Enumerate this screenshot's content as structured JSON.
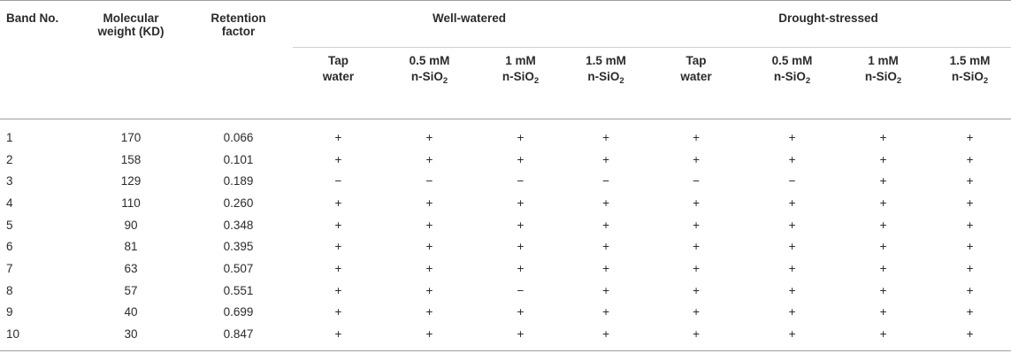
{
  "headers": {
    "band_no": "Band No.",
    "mol_weight": [
      "Molecular",
      "weight (KD)"
    ],
    "retention": [
      "Retention",
      "factor"
    ],
    "group_ww": "Well-watered",
    "group_ds": "Drought-stressed",
    "treatments": [
      {
        "l1": "Tap",
        "l2": "water",
        "sub": ""
      },
      {
        "l1": "0.5 mM",
        "l2": "n-SiO",
        "sub": "2"
      },
      {
        "l1": "1 mM",
        "l2": "n-SiO",
        "sub": "2"
      },
      {
        "l1": "1.5 mM",
        "l2": "n-SiO",
        "sub": "2"
      },
      {
        "l1": "Tap",
        "l2": "water",
        "sub": ""
      },
      {
        "l1": "0.5 mM",
        "l2": "n-SiO",
        "sub": "2"
      },
      {
        "l1": "1 mM",
        "l2": "n-SiO",
        "sub": "2"
      },
      {
        "l1": "1.5 mM",
        "l2": "n-SiO",
        "sub": "2"
      }
    ]
  },
  "rows": [
    {
      "band": "1",
      "mw": "170",
      "rf": "0.066",
      "marks": [
        "+",
        "+",
        "+",
        "+",
        "+",
        "+",
        "+",
        "+"
      ]
    },
    {
      "band": "2",
      "mw": "158",
      "rf": "0.101",
      "marks": [
        "+",
        "+",
        "+",
        "+",
        "+",
        "+",
        "+",
        "+"
      ]
    },
    {
      "band": "3",
      "mw": "129",
      "rf": "0.189",
      "marks": [
        "−",
        "−",
        "−",
        "−",
        "−",
        "−",
        "+",
        "+"
      ]
    },
    {
      "band": "4",
      "mw": "110",
      "rf": "0.260",
      "marks": [
        "+",
        "+",
        "+",
        "+",
        "+",
        "+",
        "+",
        "+"
      ]
    },
    {
      "band": "5",
      "mw": "90",
      "rf": "0.348",
      "marks": [
        "+",
        "+",
        "+",
        "+",
        "+",
        "+",
        "+",
        "+"
      ]
    },
    {
      "band": "6",
      "mw": "81",
      "rf": "0.395",
      "marks": [
        "+",
        "+",
        "+",
        "+",
        "+",
        "+",
        "+",
        "+"
      ]
    },
    {
      "band": "7",
      "mw": "63",
      "rf": "0.507",
      "marks": [
        "+",
        "+",
        "+",
        "+",
        "+",
        "+",
        "+",
        "+"
      ]
    },
    {
      "band": "8",
      "mw": "57",
      "rf": "0.551",
      "marks": [
        "+",
        "+",
        "−",
        "+",
        "+",
        "+",
        "+",
        "+"
      ]
    },
    {
      "band": "9",
      "mw": "40",
      "rf": "0.699",
      "marks": [
        "+",
        "+",
        "+",
        "+",
        "+",
        "+",
        "+",
        "+"
      ]
    },
    {
      "band": "10",
      "mw": "30",
      "rf": "0.847",
      "marks": [
        "+",
        "+",
        "+",
        "+",
        "+",
        "+",
        "+",
        "+"
      ]
    }
  ]
}
